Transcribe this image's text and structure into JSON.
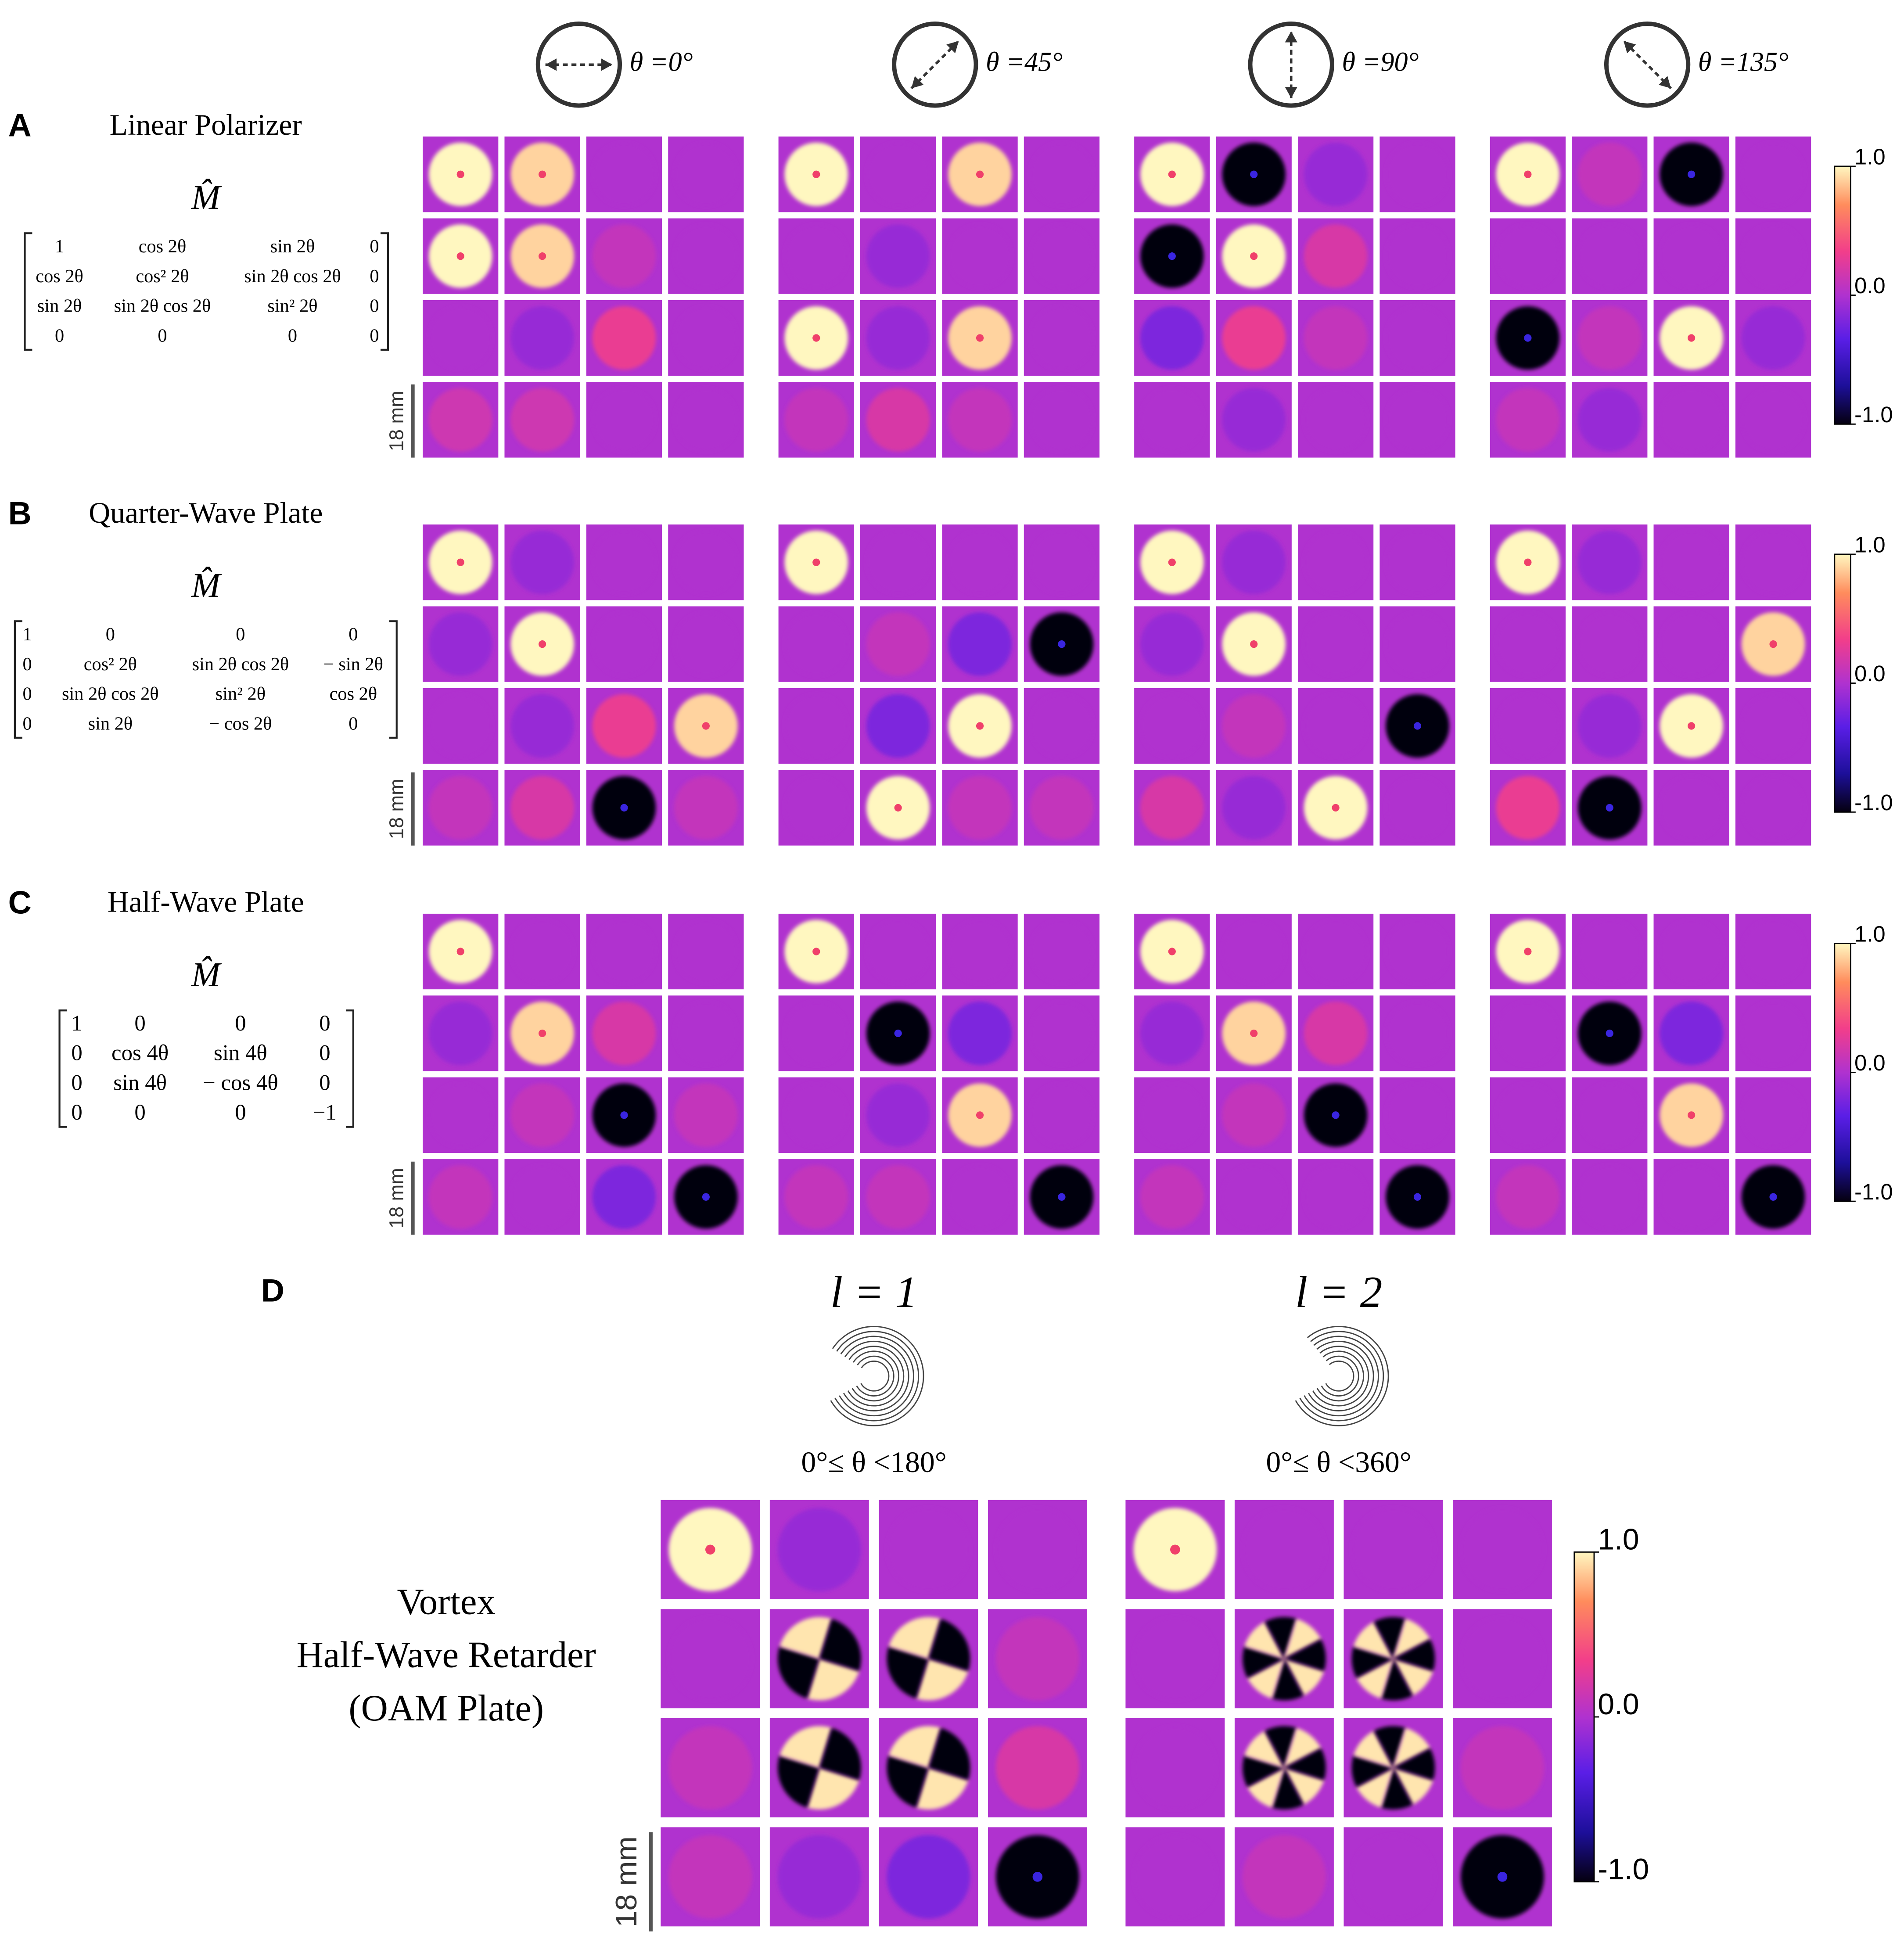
{
  "header": {
    "angles": [
      "θ =0°",
      "θ =45°",
      "θ =90°",
      "θ =135°"
    ]
  },
  "colorbar": {
    "range": [
      -1,
      1
    ],
    "ticks": [
      {
        "value": 1,
        "label": "1.0"
      },
      {
        "value": 0,
        "label": "0.0"
      },
      {
        "value": -1,
        "label": "-1.0"
      }
    ]
  },
  "scale_bar": "18 mm",
  "panels": [
    {
      "label": "A",
      "title": "Linear Polarizer",
      "symbol": "M̂",
      "matrix": [
        [
          "1",
          "cos 2θ",
          "sin 2θ",
          "0"
        ],
        [
          "cos 2θ",
          "cos² 2θ",
          "sin 2θ cos 2θ",
          "0"
        ],
        [
          "sin 2θ",
          "sin 2θ cos 2θ",
          "sin² 2θ",
          "0"
        ],
        [
          "0",
          "0",
          "0",
          "0"
        ]
      ],
      "tiles": [
        [
          [
            1,
            0.9,
            0,
            0
          ],
          [
            1,
            0.9,
            0.1,
            0
          ],
          [
            0,
            -0.1,
            0.3,
            0
          ],
          [
            0.15,
            0.15,
            0,
            0
          ]
        ],
        [
          [
            1,
            0,
            0.9,
            0
          ],
          [
            0,
            -0.1,
            0,
            0
          ],
          [
            1,
            -0.1,
            0.9,
            0
          ],
          [
            0.1,
            0.2,
            0.1,
            0
          ]
        ],
        [
          [
            1,
            -1,
            -0.1,
            0
          ],
          [
            -1,
            1,
            0.2,
            0
          ],
          [
            -0.2,
            0.3,
            0.1,
            0
          ],
          [
            0,
            -0.1,
            0,
            0
          ]
        ],
        [
          [
            1,
            0.1,
            -1,
            0
          ],
          [
            0,
            0,
            0,
            0
          ],
          [
            -1,
            0.1,
            1,
            -0.1
          ],
          [
            0.1,
            -0.1,
            0,
            0
          ]
        ]
      ]
    },
    {
      "label": "B",
      "title": "Quarter-Wave Plate",
      "symbol": "M̂",
      "matrix": [
        [
          "1",
          "0",
          "0",
          "0"
        ],
        [
          "0",
          "cos² 2θ",
          "sin 2θ cos 2θ",
          "− sin 2θ"
        ],
        [
          "0",
          "sin 2θ cos 2θ",
          "sin² 2θ",
          "cos 2θ"
        ],
        [
          "0",
          "sin 2θ",
          "− cos 2θ",
          "0"
        ]
      ],
      "tiles": [
        [
          [
            1,
            -0.1,
            0,
            0
          ],
          [
            -0.1,
            1,
            0,
            0
          ],
          [
            0,
            -0.1,
            0.3,
            0.9
          ],
          [
            0.1,
            0.2,
            -1,
            0.1
          ]
        ],
        [
          [
            1,
            0,
            0,
            0
          ],
          [
            0,
            0.1,
            -0.2,
            -1
          ],
          [
            0,
            -0.2,
            1,
            0
          ],
          [
            0,
            1,
            0.1,
            0.1
          ]
        ],
        [
          [
            1,
            -0.1,
            0,
            0
          ],
          [
            -0.1,
            1,
            0,
            0
          ],
          [
            0,
            0.1,
            0,
            -1
          ],
          [
            0.2,
            -0.1,
            1,
            0
          ]
        ],
        [
          [
            1,
            -0.1,
            0,
            0
          ],
          [
            0,
            0,
            0,
            0.9
          ],
          [
            0,
            -0.1,
            1,
            0
          ],
          [
            0.3,
            -1,
            0,
            0
          ]
        ]
      ]
    },
    {
      "label": "C",
      "title": "Half-Wave Plate",
      "symbol": "M̂",
      "matrix": [
        [
          "1",
          "0",
          "0",
          "0"
        ],
        [
          "0",
          "cos 4θ",
          "sin 4θ",
          "0"
        ],
        [
          "0",
          "sin 4θ",
          "− cos 4θ",
          "0"
        ],
        [
          "0",
          "0",
          "0",
          "−1"
        ]
      ],
      "tiles": [
        [
          [
            1,
            0,
            0,
            0
          ],
          [
            -0.1,
            0.9,
            0.2,
            0
          ],
          [
            0,
            0.1,
            -1,
            0.1
          ],
          [
            0.1,
            0,
            -0.2,
            -1
          ]
        ],
        [
          [
            1,
            0,
            0,
            0
          ],
          [
            0,
            -1,
            -0.2,
            0
          ],
          [
            0,
            -0.1,
            0.9,
            0
          ],
          [
            0.1,
            0.1,
            0,
            -1
          ]
        ],
        [
          [
            1,
            0,
            0,
            0
          ],
          [
            -0.1,
            0.9,
            0.2,
            0
          ],
          [
            0,
            0.1,
            -1,
            0
          ],
          [
            0.1,
            0,
            0,
            -1
          ]
        ],
        [
          [
            1,
            0,
            0,
            0
          ],
          [
            0,
            -1,
            -0.2,
            0
          ],
          [
            0,
            0,
            0.9,
            0
          ],
          [
            0.1,
            0,
            0,
            -1
          ]
        ]
      ]
    }
  ],
  "vortex": {
    "label": "D",
    "title": [
      "Vortex",
      "Half-Wave Retarder",
      "(OAM Plate)"
    ],
    "orders": [
      {
        "name": "l = 1",
        "range": "0°≤ θ <180°",
        "tiles": [
          [
            1,
            -0.1,
            0,
            0
          ],
          [
            0,
            0,
            0,
            0.1
          ],
          [
            0.1,
            0,
            0,
            0.2
          ],
          [
            0.1,
            -0.1,
            -0.2,
            -1
          ]
        ]
      },
      {
        "name": "l = 2",
        "range": "0°≤ θ <360°",
        "tiles": [
          [
            1,
            0,
            0,
            0
          ],
          [
            0,
            0,
            0,
            0
          ],
          [
            0,
            0,
            0,
            0.1
          ],
          [
            0,
            0.1,
            0,
            -1
          ]
        ]
      }
    ]
  }
}
